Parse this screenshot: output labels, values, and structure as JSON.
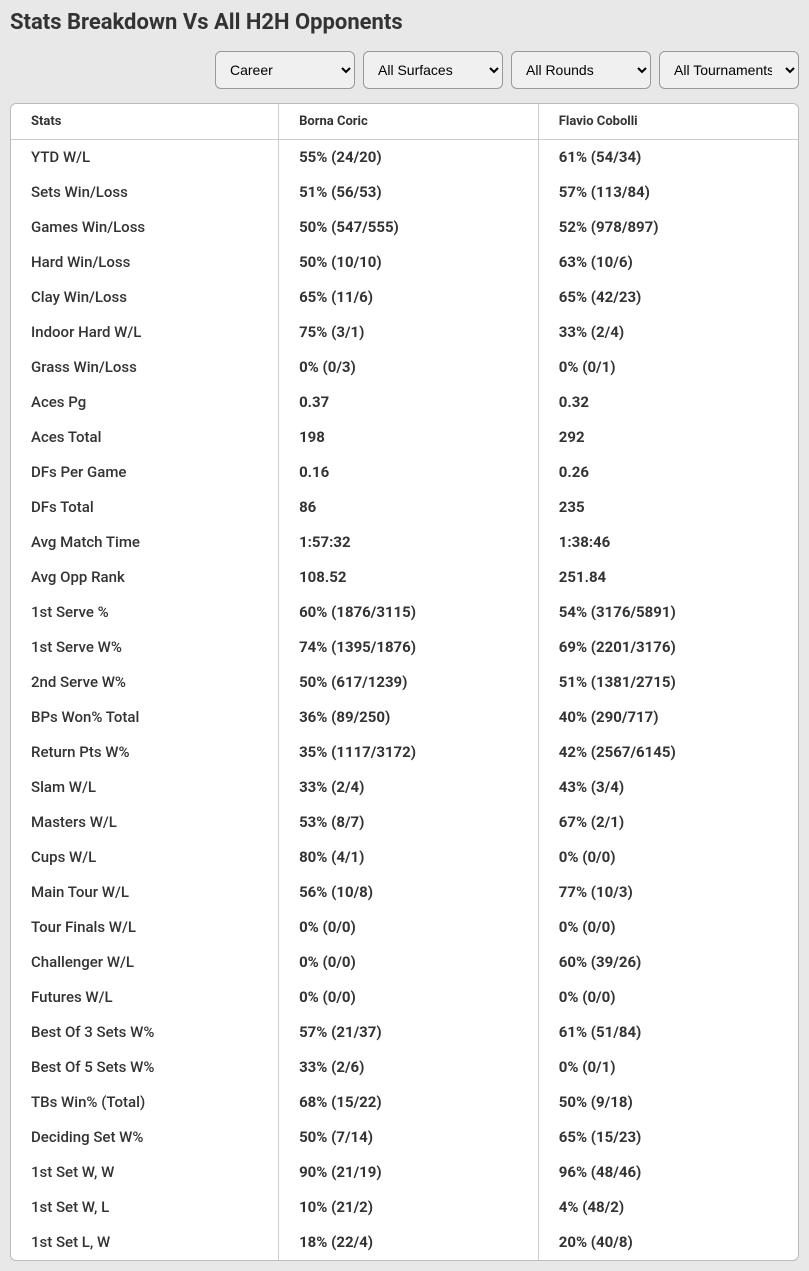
{
  "title": "Stats Breakdown Vs All H2H Opponents",
  "filters": {
    "career": "Career",
    "surfaces": "All Surfaces",
    "rounds": "All Rounds",
    "tournaments": "All Tournaments"
  },
  "columns": {
    "stats": "Stats",
    "player1": "Borna Coric",
    "player2": "Flavio Cobolli"
  },
  "rows": [
    {
      "stat": "YTD W/L",
      "p1": "55% (24/20)",
      "p2": "61% (54/34)"
    },
    {
      "stat": "Sets Win/Loss",
      "p1": "51% (56/53)",
      "p2": "57% (113/84)"
    },
    {
      "stat": "Games Win/Loss",
      "p1": "50% (547/555)",
      "p2": "52% (978/897)"
    },
    {
      "stat": "Hard Win/Loss",
      "p1": "50% (10/10)",
      "p2": "63% (10/6)"
    },
    {
      "stat": "Clay Win/Loss",
      "p1": "65% (11/6)",
      "p2": "65% (42/23)"
    },
    {
      "stat": "Indoor Hard W/L",
      "p1": "75% (3/1)",
      "p2": "33% (2/4)"
    },
    {
      "stat": "Grass Win/Loss",
      "p1": "0% (0/3)",
      "p2": "0% (0/1)"
    },
    {
      "stat": "Aces Pg",
      "p1": "0.37",
      "p2": "0.32"
    },
    {
      "stat": "Aces Total",
      "p1": "198",
      "p2": "292"
    },
    {
      "stat": "DFs Per Game",
      "p1": "0.16",
      "p2": "0.26"
    },
    {
      "stat": "DFs Total",
      "p1": "86",
      "p2": "235"
    },
    {
      "stat": "Avg Match Time",
      "p1": "1:57:32",
      "p2": "1:38:46"
    },
    {
      "stat": "Avg Opp Rank",
      "p1": "108.52",
      "p2": "251.84"
    },
    {
      "stat": "1st Serve %",
      "p1": "60% (1876/3115)",
      "p2": "54% (3176/5891)"
    },
    {
      "stat": "1st Serve W%",
      "p1": "74% (1395/1876)",
      "p2": "69% (2201/3176)"
    },
    {
      "stat": "2nd Serve W%",
      "p1": "50% (617/1239)",
      "p2": "51% (1381/2715)"
    },
    {
      "stat": "BPs Won% Total",
      "p1": "36% (89/250)",
      "p2": "40% (290/717)"
    },
    {
      "stat": "Return Pts W%",
      "p1": "35% (1117/3172)",
      "p2": "42% (2567/6145)"
    },
    {
      "stat": "Slam W/L",
      "p1": "33% (2/4)",
      "p2": "43% (3/4)"
    },
    {
      "stat": "Masters W/L",
      "p1": "53% (8/7)",
      "p2": "67% (2/1)"
    },
    {
      "stat": "Cups W/L",
      "p1": "80% (4/1)",
      "p2": "0% (0/0)"
    },
    {
      "stat": "Main Tour W/L",
      "p1": "56% (10/8)",
      "p2": "77% (10/3)"
    },
    {
      "stat": "Tour Finals W/L",
      "p1": "0% (0/0)",
      "p2": "0% (0/0)"
    },
    {
      "stat": "Challenger W/L",
      "p1": "0% (0/0)",
      "p2": "60% (39/26)"
    },
    {
      "stat": "Futures W/L",
      "p1": "0% (0/0)",
      "p2": "0% (0/0)"
    },
    {
      "stat": "Best Of 3 Sets W%",
      "p1": "57% (21/37)",
      "p2": "61% (51/84)"
    },
    {
      "stat": "Best Of 5 Sets W%",
      "p1": "33% (2/6)",
      "p2": "0% (0/1)"
    },
    {
      "stat": "TBs Win% (Total)",
      "p1": "68% (15/22)",
      "p2": "50% (9/18)"
    },
    {
      "stat": "Deciding Set W%",
      "p1": "50% (7/14)",
      "p2": "65% (15/23)"
    },
    {
      "stat": "1st Set W, W",
      "p1": "90% (21/19)",
      "p2": "96% (48/46)"
    },
    {
      "stat": "1st Set W, L",
      "p1": "10% (21/2)",
      "p2": "4% (48/2)"
    },
    {
      "stat": "1st Set L, W",
      "p1": "18% (22/4)",
      "p2": "20% (40/8)"
    }
  ]
}
